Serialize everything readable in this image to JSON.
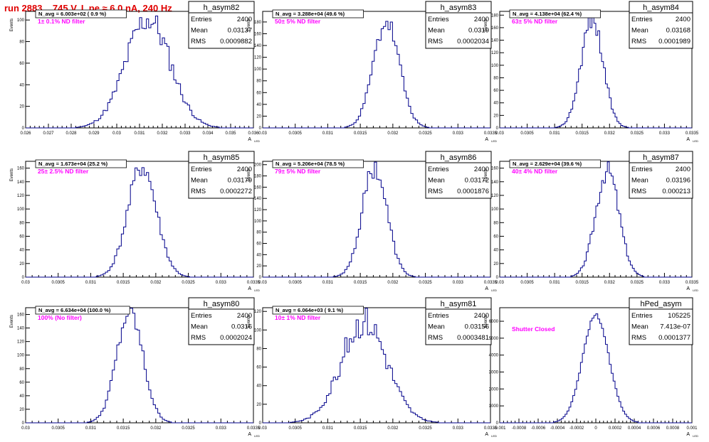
{
  "page": {
    "title": "run 2883,   745 V, I_pe ≈ 6.0 nA, 240 Hz"
  },
  "common": {
    "ylabel": "Events",
    "xlabel": "A",
    "xlabel_sub": "LED",
    "stats_labels": [
      "Entries",
      "Mean",
      "RMS"
    ]
  },
  "colors": {
    "histogram": "#00008b",
    "annotation": "#ff00ff",
    "title": "#e00000",
    "axis": "#000000"
  },
  "chart_data": [
    {
      "type": "histogram",
      "name": "h_asym82",
      "navg": "N_avg = 6.003e+02 ( 0.9 %)",
      "note": "1± 0.1% ND filter",
      "entries": "2400",
      "mean": "0.03137",
      "rms": "0.0009882",
      "xlim": [
        0.026,
        0.036
      ],
      "xticks": [
        "0.026",
        "0.027",
        "0.028",
        "0.029",
        "0.03",
        "0.031",
        "0.032",
        "0.033",
        "0.034",
        "0.035",
        "0.036"
      ],
      "ylim": [
        0,
        108
      ],
      "yticks": [
        "0",
        "20",
        "40",
        "60",
        "80",
        "100"
      ],
      "mu": 0.03137,
      "sigma": 0.00098,
      "peak": 101,
      "noise": 0.14,
      "seed": 11
    },
    {
      "type": "histogram",
      "name": "h_asym83",
      "navg": "N_avg = 3.288e+04 (49.6 %)",
      "note": "50± 5% ND filter",
      "entries": "2400",
      "mean": "0.0319",
      "rms": "0.0002034",
      "xlim": [
        0.03,
        0.0335
      ],
      "xticks": [
        "0.03",
        "0.0305",
        "0.031",
        "0.0315",
        "0.032",
        "0.0325",
        "0.033",
        "0.0335"
      ],
      "ylim": [
        0,
        198
      ],
      "yticks": [
        "0",
        "20",
        "40",
        "60",
        "80",
        "100",
        "120",
        "140",
        "160",
        "180"
      ],
      "mu": 0.0319,
      "sigma": 0.0002,
      "peak": 180,
      "noise": 0.1,
      "seed": 23
    },
    {
      "type": "histogram",
      "name": "h_asym84",
      "navg": "N_avg = 4.138e+04 (62.4 %)",
      "note": "63± 5% ND filter",
      "entries": "2400",
      "mean": "0.03168",
      "rms": "0.0001989",
      "xlim": [
        0.03,
        0.0335
      ],
      "xticks": [
        "0.03",
        "0.0305",
        "0.031",
        "0.0315",
        "0.032",
        "0.0325",
        "0.033",
        "0.0335"
      ],
      "ylim": [
        0,
        186
      ],
      "yticks": [
        "0",
        "20",
        "40",
        "60",
        "80",
        "100",
        "120",
        "140",
        "160",
        "180"
      ],
      "mu": 0.03168,
      "sigma": 0.0002,
      "peak": 175,
      "noise": 0.1,
      "seed": 37
    },
    {
      "type": "histogram",
      "name": "h_asym85",
      "navg": "N_avg = 1.673e+04 (25.2 %)",
      "note": "25± 2.5% ND filter",
      "entries": "2400",
      "mean": "0.03179",
      "rms": "0.0002272",
      "xlim": [
        0.03,
        0.0335
      ],
      "xticks": [
        "0.03",
        "0.0305",
        "0.031",
        "0.0315",
        "0.032",
        "0.0325",
        "0.033",
        "0.0335"
      ],
      "ylim": [
        0,
        170
      ],
      "yticks": [
        "0",
        "20",
        "40",
        "60",
        "80",
        "100",
        "120",
        "140",
        "160"
      ],
      "mu": 0.03179,
      "sigma": 0.00022,
      "peak": 162,
      "noise": 0.1,
      "seed": 41
    },
    {
      "type": "histogram",
      "name": "h_asym86",
      "navg": "N_avg = 5.206e+04 (78.5 %)",
      "note": "79± 5% ND filter",
      "entries": "2400",
      "mean": "0.03172",
      "rms": "0.0001876",
      "xlim": [
        0.03,
        0.0335
      ],
      "xticks": [
        "0.03",
        "0.0305",
        "0.031",
        "0.0315",
        "0.032",
        "0.0325",
        "0.033",
        "0.0335"
      ],
      "ylim": [
        0,
        206
      ],
      "yticks": [
        "0",
        "20",
        "40",
        "60",
        "80",
        "100",
        "120",
        "140",
        "160",
        "180",
        "200"
      ],
      "mu": 0.03172,
      "sigma": 0.00019,
      "peak": 196,
      "noise": 0.1,
      "seed": 53
    },
    {
      "type": "histogram",
      "name": "h_asym87",
      "navg": "N_avg = 2.629e+04 (39.6 %)",
      "note": "40± 4% ND filter",
      "entries": "2400",
      "mean": "0.03196",
      "rms": "0.000213",
      "xlim": [
        0.03,
        0.0335
      ],
      "xticks": [
        "0.03",
        "0.0305",
        "0.031",
        "0.0315",
        "0.032",
        "0.0325",
        "0.033",
        "0.0335"
      ],
      "ylim": [
        0,
        170
      ],
      "yticks": [
        "0",
        "20",
        "40",
        "60",
        "80",
        "100",
        "120",
        "140",
        "160"
      ],
      "mu": 0.03196,
      "sigma": 0.00021,
      "peak": 158,
      "noise": 0.1,
      "seed": 67
    },
    {
      "type": "histogram",
      "name": "h_asym80",
      "navg": "N_avg = 6.634e+04 (100.0 %)",
      "note": "100% (No filter)",
      "entries": "2400",
      "mean": "0.0316",
      "rms": "0.0002024",
      "xlim": [
        0.03,
        0.0335
      ],
      "xticks": [
        "0.03",
        "0.0305",
        "0.031",
        "0.0315",
        "0.032",
        "0.0325",
        "0.033",
        "0.0335"
      ],
      "ylim": [
        0,
        170
      ],
      "yticks": [
        "0",
        "20",
        "40",
        "60",
        "80",
        "100",
        "120",
        "140",
        "160"
      ],
      "mu": 0.0316,
      "sigma": 0.0002,
      "peak": 164,
      "noise": 0.1,
      "seed": 79
    },
    {
      "type": "histogram",
      "name": "h_asym81",
      "navg": "N_avg = 6.064e+03 ( 9.1 %)",
      "note": "10± 1% ND filter",
      "entries": "2400",
      "mean": "0.03156",
      "rms": "0.0003481",
      "xlim": [
        0.03,
        0.0335
      ],
      "xticks": [
        "0.03",
        "0.0305",
        "0.031",
        "0.0315",
        "0.032",
        "0.0325",
        "0.033",
        "0.0335"
      ],
      "ylim": [
        0,
        124
      ],
      "yticks": [
        "0",
        "20",
        "40",
        "60",
        "80",
        "100",
        "120"
      ],
      "mu": 0.03156,
      "sigma": 0.00035,
      "peak": 110,
      "noise": 0.16,
      "seed": 83
    },
    {
      "type": "histogram",
      "name": "hPed_asym",
      "navg": "",
      "note": "Shutter Closed",
      "entries": "105225",
      "mean": "7.413e-07",
      "rms": "0.0001377",
      "xlim": [
        -0.001,
        0.001
      ],
      "xticks": [
        "-0.001",
        "-0.0008",
        "-0.0006",
        "-0.0004",
        "-0.0002",
        "0",
        "0.0002",
        "0.0004",
        "0.0006",
        "0.0008",
        "0.001"
      ],
      "ylim": [
        0,
        6800
      ],
      "yticks": [
        "0",
        "1000",
        "2000",
        "3000",
        "4000",
        "5000",
        "6000"
      ],
      "mu": 0.0,
      "sigma": 0.000138,
      "peak": 6350,
      "noise": 0.02,
      "seed": 97
    }
  ]
}
